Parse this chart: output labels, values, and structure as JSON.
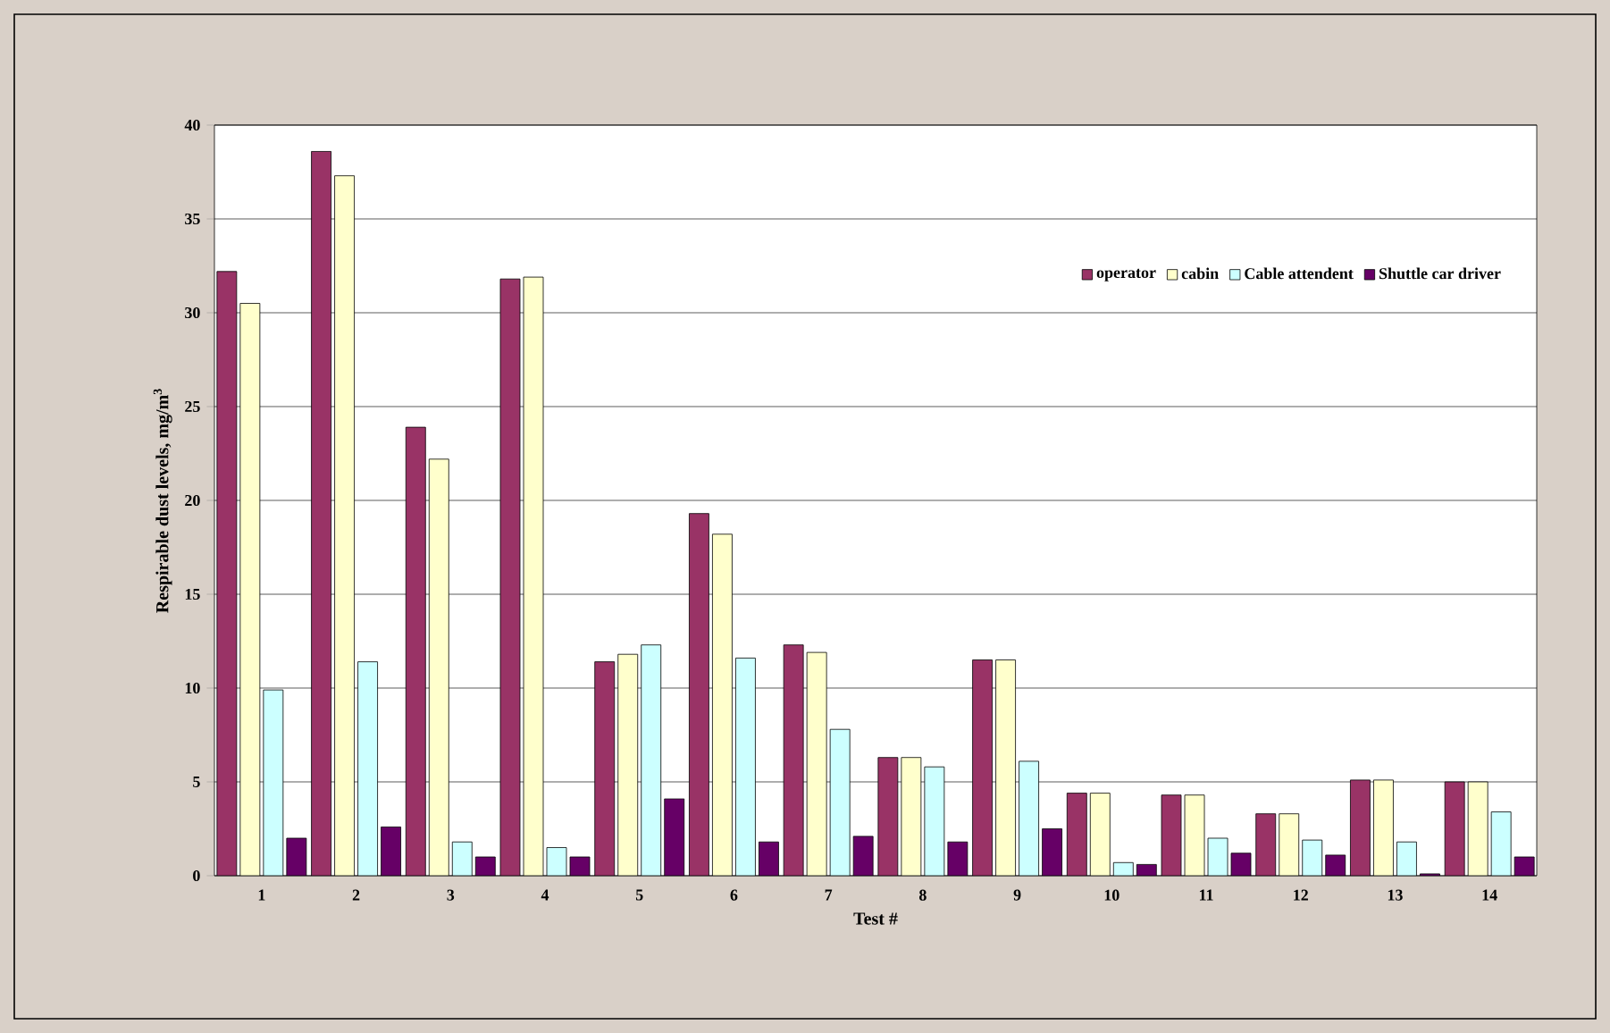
{
  "chart_data": {
    "type": "bar",
    "xlabel": "Test #",
    "ylabel": "Respirable dust levels, mg/m$^{3}$",
    "categories": [
      "1",
      "2",
      "3",
      "4",
      "5",
      "6",
      "7",
      "8",
      "9",
      "10",
      "11",
      "12",
      "13",
      "14"
    ],
    "series": [
      {
        "name": "operator",
        "color": "#993366",
        "values": [
          32.2,
          38.6,
          23.9,
          31.8,
          11.4,
          19.3,
          12.3,
          6.3,
          11.5,
          4.4,
          4.3,
          3.3,
          5.1,
          5.0
        ]
      },
      {
        "name": "cabin",
        "color": "#ffffcc",
        "values": [
          30.5,
          37.3,
          22.2,
          31.9,
          11.8,
          18.2,
          11.9,
          6.3,
          11.5,
          4.4,
          4.3,
          3.3,
          5.1,
          5.0
        ]
      },
      {
        "name": "Cable attendent",
        "color": "#ccffff",
        "values": [
          9.9,
          11.4,
          1.8,
          1.5,
          12.3,
          11.6,
          7.8,
          5.8,
          6.1,
          0.7,
          2.0,
          1.9,
          1.8,
          3.4
        ]
      },
      {
        "name": "Shuttle car driver",
        "color": "#660066",
        "values": [
          2.0,
          2.6,
          1.0,
          1.0,
          4.1,
          1.8,
          2.1,
          1.8,
          2.5,
          0.6,
          1.2,
          1.1,
          0.1,
          1.0
        ]
      }
    ],
    "ylim": [
      0,
      40
    ],
    "yticks": [
      0,
      5,
      10,
      15,
      20,
      25,
      30,
      35,
      40
    ],
    "grid": "y",
    "legend": "top right"
  }
}
